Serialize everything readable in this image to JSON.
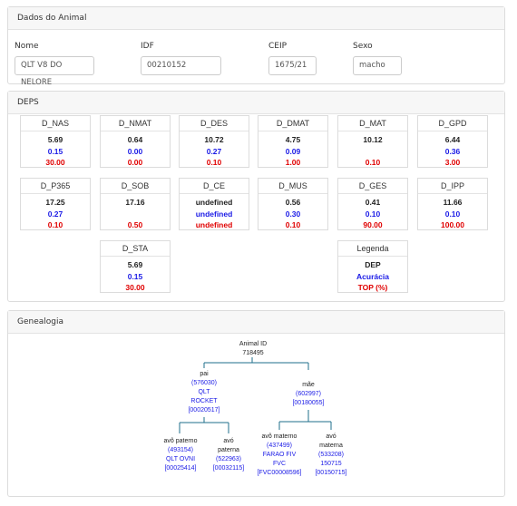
{
  "animal": {
    "header": "Dados do Animal",
    "nome_label": "Nome",
    "nome_value": "QLT V8 DO NELORE",
    "idf_label": "IDF",
    "idf_value": "00210152",
    "ceip_label": "CEIP",
    "ceip_value": "1675/21",
    "sexo_label": "Sexo",
    "sexo_value": "macho"
  },
  "deps": {
    "header": "DEPS",
    "items": [
      {
        "name": "D_NAS",
        "dep": "5.69",
        "acc": "0.15",
        "top": "30.00"
      },
      {
        "name": "D_NMAT",
        "dep": "0.64",
        "acc": "0.00",
        "top": "0.00"
      },
      {
        "name": "D_DES",
        "dep": "10.72",
        "acc": "0.27",
        "top": "0.10"
      },
      {
        "name": "D_DMAT",
        "dep": "4.75",
        "acc": "0.09",
        "top": "1.00"
      },
      {
        "name": "D_MAT",
        "dep": "10.12",
        "acc": "",
        "top": "0.10"
      },
      {
        "name": "D_GPD",
        "dep": "6.44",
        "acc": "0.36",
        "top": "3.00"
      },
      {
        "name": "D_P365",
        "dep": "17.25",
        "acc": "0.27",
        "top": "0.10"
      },
      {
        "name": "D_SOB",
        "dep": "17.16",
        "acc": "",
        "top": "0.50"
      },
      {
        "name": "D_CE",
        "dep": "undefined",
        "acc": "undefined",
        "top": "undefined"
      },
      {
        "name": "D_MUS",
        "dep": "0.56",
        "acc": "0.30",
        "top": "0.10"
      },
      {
        "name": "D_GES",
        "dep": "0.41",
        "acc": "0.10",
        "top": "90.00"
      },
      {
        "name": "D_IPP",
        "dep": "11.66",
        "acc": "0.10",
        "top": "100.00"
      },
      {
        "name": "D_STA",
        "dep": "5.69",
        "acc": "0.15",
        "top": "30.00"
      }
    ],
    "legend": {
      "title": "Legenda",
      "dep": "DEP",
      "acc": "Acurácia",
      "top": "TOP (%)"
    }
  },
  "genealogy": {
    "header": "Genealogia",
    "animal": {
      "label": "Animal ID",
      "id": "718495"
    },
    "pai": {
      "label": "pai",
      "id": "(576030)",
      "name1": "QLT",
      "name2": "ROCKET",
      "code": "[00020517]"
    },
    "mae": {
      "label": "mãe",
      "id": "(602997)",
      "code": "[00180055]"
    },
    "avo_paterno": {
      "label": "avô paterno",
      "id": "(493154)",
      "name": "QLT OVNI",
      "code": "[00025414]"
    },
    "avo_paterna": {
      "label1": "avó",
      "label2": "paterna",
      "id": "(522963)",
      "code": "[00032115]"
    },
    "avo_materno": {
      "label": "avô materno",
      "id": "(437499)",
      "name1": "FARAO FIV",
      "name2": "FVC",
      "code": "[FVC00008596]"
    },
    "avo_materna": {
      "label1": "avó",
      "label2": "materna",
      "id": "(533208)",
      "name": "150715",
      "code": "[00150715]"
    }
  }
}
